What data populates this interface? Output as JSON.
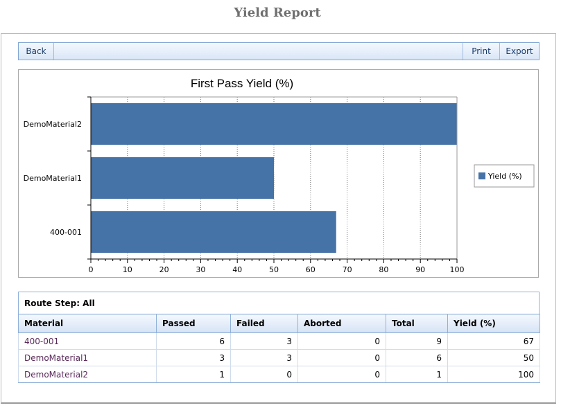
{
  "page": {
    "title": "Yield Report"
  },
  "toolbar": {
    "back": "Back",
    "print": "Print",
    "export": "Export"
  },
  "chart_data": {
    "type": "bar",
    "orientation": "horizontal",
    "title": "First Pass Yield (%)",
    "categories": [
      "DemoMaterial2",
      "DemoMaterial1",
      "400-001"
    ],
    "series": [
      {
        "name": "Yield (%)",
        "values": [
          100,
          50,
          67
        ],
        "color": "#4572a7"
      }
    ],
    "xlim": [
      0,
      100
    ],
    "xticks": [
      "0",
      "10",
      "20",
      "30",
      "40",
      "50",
      "60",
      "70",
      "80",
      "90",
      "100"
    ],
    "grid": true,
    "legend": "right"
  },
  "route": {
    "label": "Route Step: All"
  },
  "table": {
    "headers": [
      "Material",
      "Passed",
      "Failed",
      "Aborted",
      "Total",
      "Yield (%)"
    ],
    "rows": [
      [
        "400-001",
        "6",
        "3",
        "0",
        "9",
        "67"
      ],
      [
        "DemoMaterial1",
        "3",
        "3",
        "0",
        "6",
        "50"
      ],
      [
        "DemoMaterial2",
        "1",
        "0",
        "0",
        "1",
        "100"
      ]
    ]
  }
}
